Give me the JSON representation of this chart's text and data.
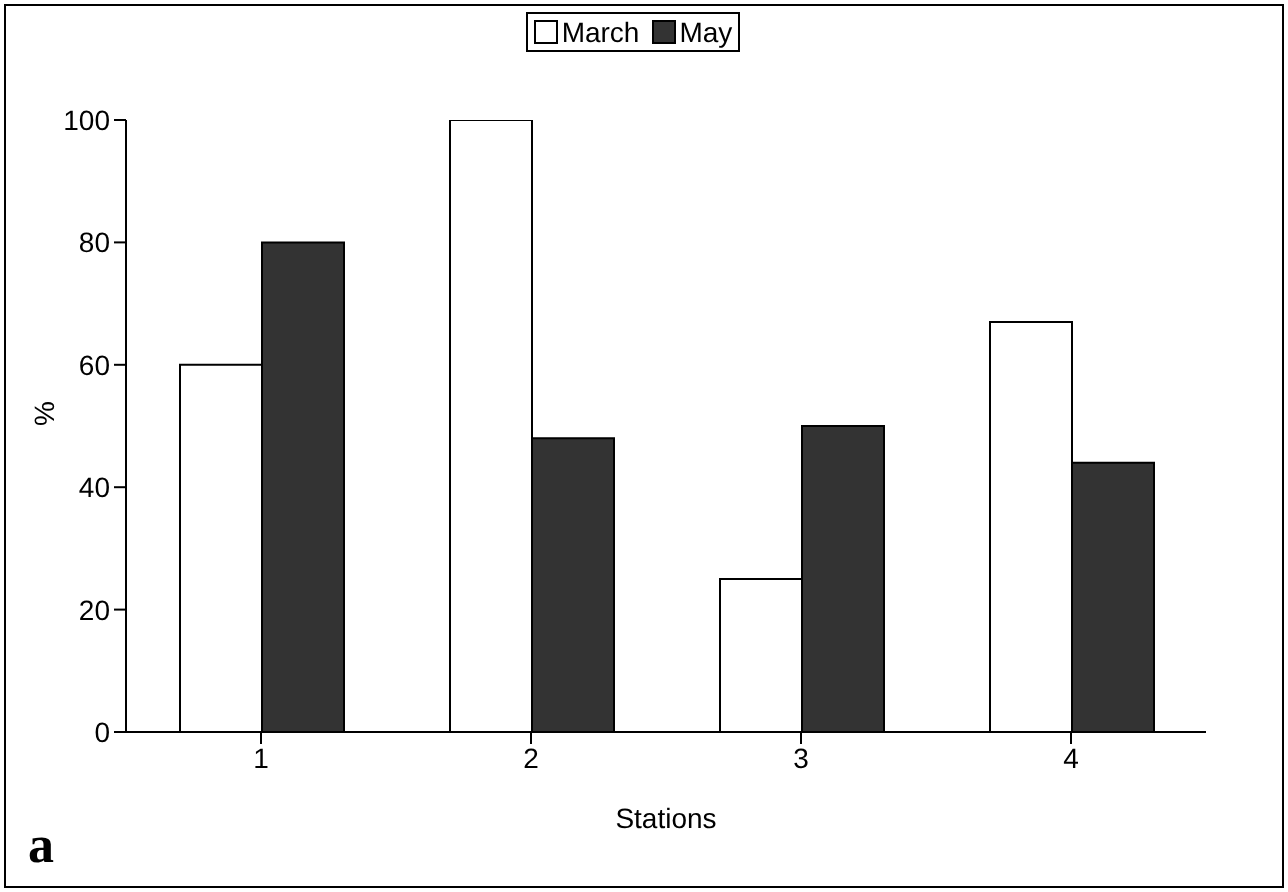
{
  "chart_data": {
    "type": "bar",
    "categories": [
      "1",
      "2",
      "3",
      "4"
    ],
    "series": [
      {
        "name": "March",
        "color": "#ffffff",
        "values": [
          60,
          100,
          25,
          67
        ]
      },
      {
        "name": "May",
        "color": "#333333",
        "values": [
          80,
          48,
          50,
          44
        ]
      }
    ],
    "xlabel": "Stations",
    "ylabel": "%",
    "ylim": [
      0,
      100
    ],
    "yticks": [
      0,
      20,
      40,
      60,
      80,
      100
    ],
    "legend": "top",
    "grid": false,
    "annotations": [
      "a"
    ]
  }
}
